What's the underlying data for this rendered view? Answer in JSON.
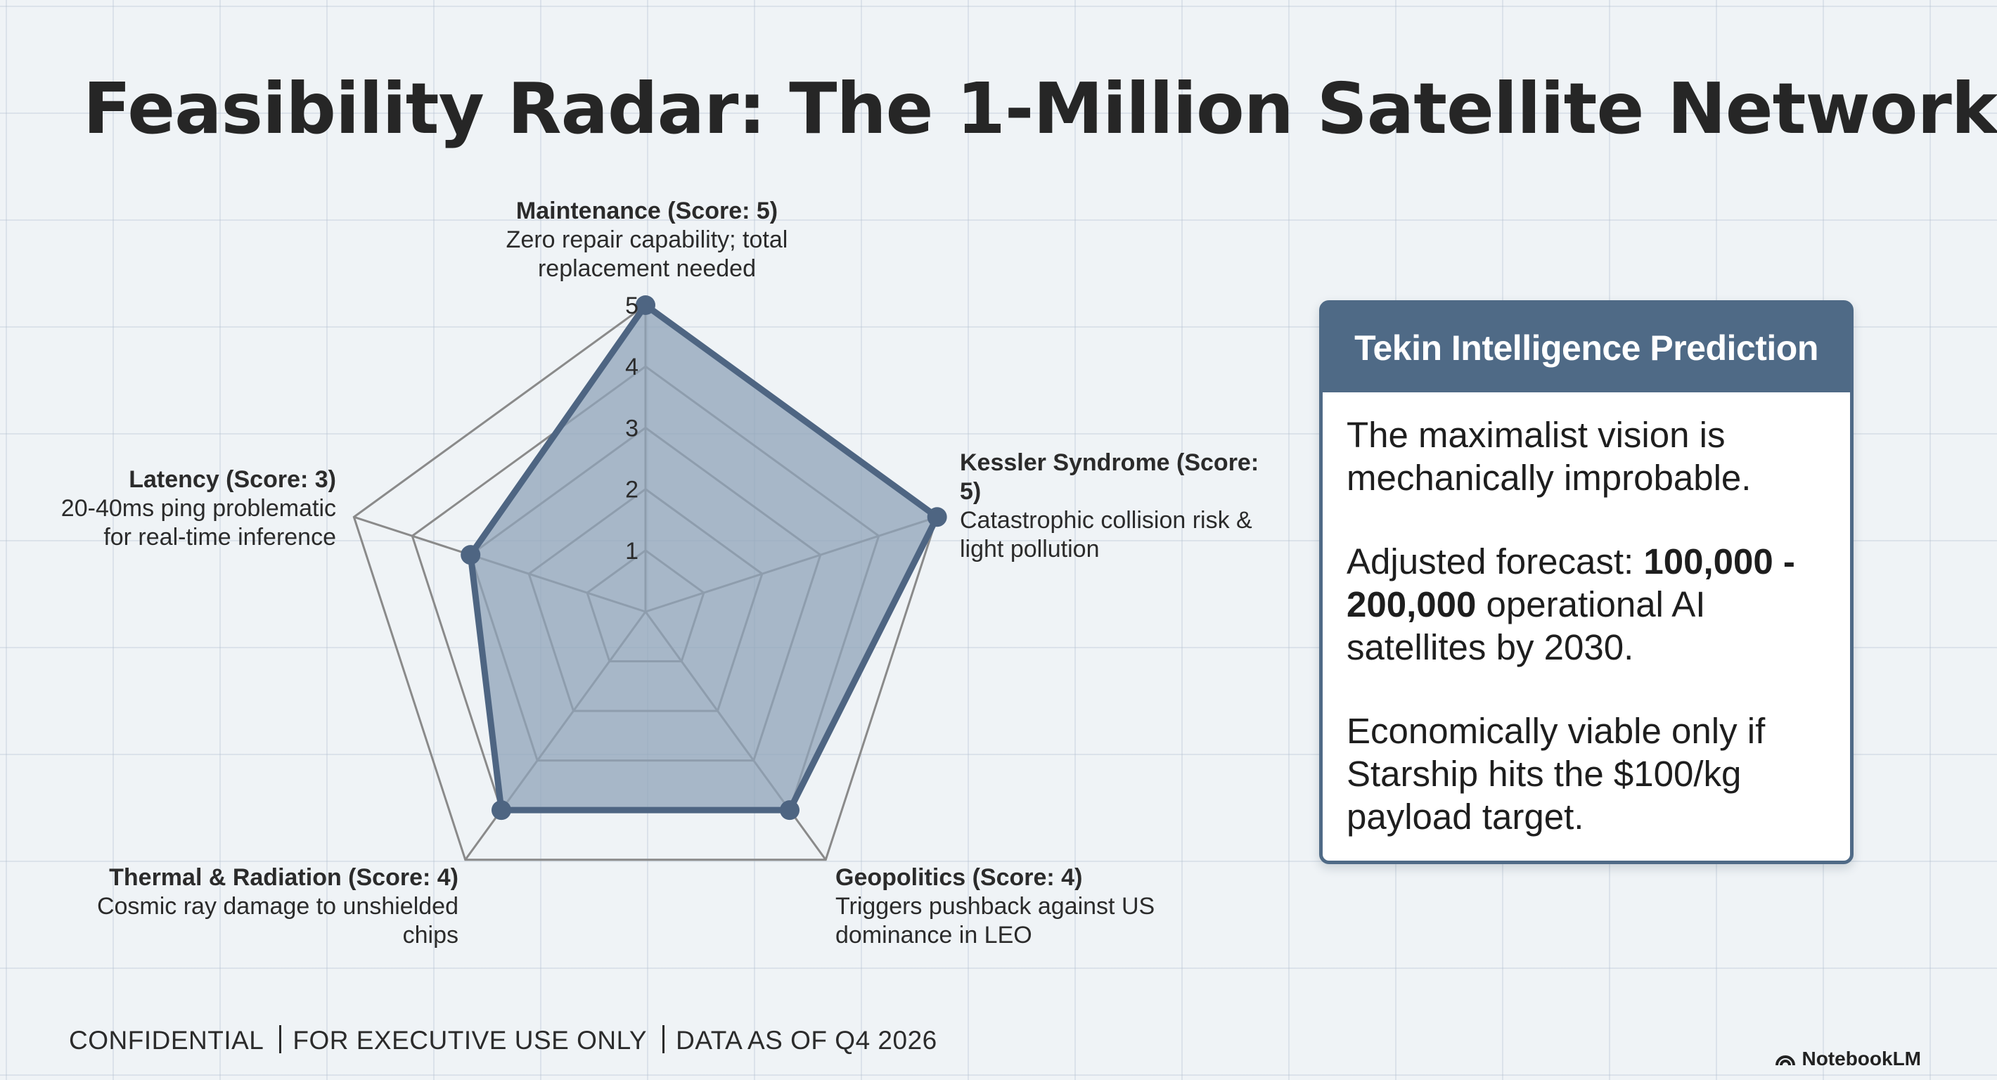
{
  "title": "Feasibility Radar: The 1-Million Satellite Network",
  "chart_data": {
    "type": "radar",
    "scale": {
      "min": 0,
      "max": 5,
      "tick_labels": [
        "1",
        "2",
        "3",
        "4",
        "5"
      ]
    },
    "axes": [
      {
        "name": "Maintenance (Score: 5)",
        "score": 5,
        "description": "Zero repair capability; total replacement needed"
      },
      {
        "name": "Kessler Syndrome (Score: 5)",
        "score": 5,
        "description": "Catastrophic collision risk & light pollution"
      },
      {
        "name": "Geopolitics (Score: 4)",
        "score": 4,
        "description": "Triggers pushback against US dominance in LEO"
      },
      {
        "name": "Thermal & Radiation (Score: 4)",
        "score": 4,
        "description": "Cosmic ray damage to unshielded chips"
      },
      {
        "name": "Latency (Score: 3)",
        "score": 3,
        "description": "20-40ms ping problematic for real-time inference"
      }
    ],
    "series": [
      {
        "values": [
          5,
          5,
          4,
          4,
          3
        ]
      }
    ],
    "fill_color": "#8fa3b8",
    "line_color": "#4e6582",
    "grid_color": "#8a8a8a"
  },
  "panel": {
    "title": "Tekin Intelligence Prediction",
    "p1": "The maximalist vision is mechanically improbable.",
    "p2_prefix": "Adjusted forecast: ",
    "p2_bold": "100,000 - 200,000",
    "p2_suffix": " operational AI satellites by 2030.",
    "p3": "Economically viable only if Starship hits the $100/kg payload target."
  },
  "footer": {
    "part1": "CONFIDENTIAL",
    "part2": "FOR EXECUTIVE USE ONLY",
    "part3": "DATA AS OF Q4 2026"
  },
  "brand": {
    "label": "NotebookLM",
    "icon": "notebooklm-logo-icon"
  }
}
